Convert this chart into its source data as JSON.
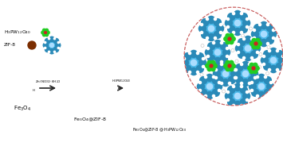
{
  "bg_color": "#ffffff",
  "fe3o4_color": "#3a3a3a",
  "fe3o4_highlight": "#888888",
  "zif8_shell_color": "#7B2D00",
  "pom_color": "#22cc22",
  "pom_center_color": "#cc2222",
  "zif8_node_color": "#4ab8e8",
  "zif8_node_dark": "#2a8ab8",
  "arrow_color": "#222222",
  "label_step1": "Fe$_3$O$_4$",
  "label_step2": "Fe$_3$O$_4$@ZIF-8",
  "label_step3": "Fe$_3$O$_4$@ZIF-8 @ H$_3$PW$_{12}$O$_{40}$",
  "reagent1_top": "Zn(NO$_3$)$_2$·6H$_2$O",
  "reagent2": "H$_3$PW$_{12}$O$_{40}$",
  "legend_pom": "H$_3$PW$_{12}$O$_{40}$",
  "legend_zif": "ZIF-8",
  "inset_border": "#cc6666",
  "linker_color": "#e0e0e0"
}
